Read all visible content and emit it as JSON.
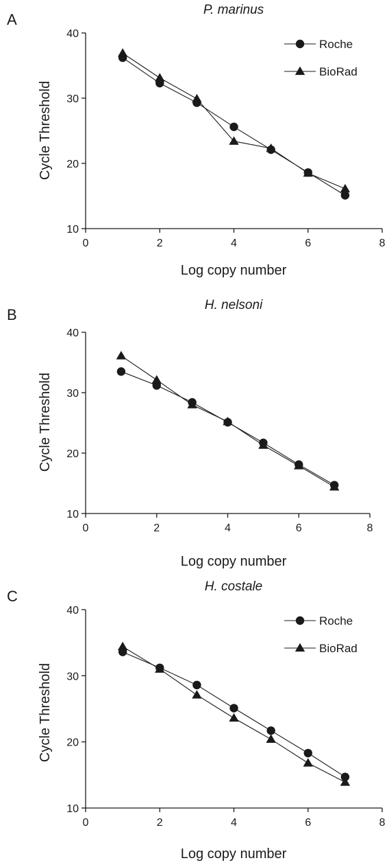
{
  "chart_data": [
    {
      "type": "line",
      "panel_label": "A",
      "title": "P. marinus",
      "xlabel": "Log copy number",
      "ylabel": "Cycle Threshold",
      "xlim": [
        0,
        8
      ],
      "ylim": [
        10,
        40
      ],
      "xticks": [
        0,
        2,
        4,
        6,
        8
      ],
      "yticks": [
        10,
        20,
        30,
        40
      ],
      "legend": true,
      "legend_position": "top-right",
      "x": [
        1,
        2,
        3,
        4,
        5,
        6,
        7
      ],
      "series": [
        {
          "name": "Roche",
          "marker": "circle",
          "values": [
            36.2,
            32.3,
            29.3,
            25.6,
            22.1,
            18.6,
            15.1
          ]
        },
        {
          "name": "BioRad",
          "marker": "triangle",
          "values": [
            36.9,
            33.1,
            29.9,
            23.4,
            22.3,
            18.5,
            16.1
          ]
        }
      ]
    },
    {
      "type": "line",
      "panel_label": "B",
      "title": "H. nelsoni",
      "xlabel": "Log copy number",
      "ylabel": "Cycle Threshold",
      "xlim": [
        0,
        8
      ],
      "ylim": [
        10,
        40
      ],
      "xticks": [
        0,
        2,
        4,
        6,
        8
      ],
      "yticks": [
        10,
        20,
        30,
        40
      ],
      "legend": false,
      "x": [
        1,
        2,
        3,
        4,
        5,
        6,
        7
      ],
      "series": [
        {
          "name": "Roche",
          "marker": "circle",
          "values": [
            33.5,
            31.2,
            28.4,
            25.1,
            21.7,
            18.1,
            14.7
          ]
        },
        {
          "name": "BioRad",
          "marker": "triangle",
          "values": [
            36.1,
            32.1,
            28.0,
            25.2,
            21.3,
            17.9,
            14.4
          ]
        }
      ]
    },
    {
      "type": "line",
      "panel_label": "C",
      "title": "H. costale",
      "xlabel": "Log copy number",
      "ylabel": "Cycle Threshold",
      "xlim": [
        0,
        8
      ],
      "ylim": [
        10,
        40
      ],
      "xticks": [
        0,
        2,
        4,
        6,
        8
      ],
      "yticks": [
        10,
        20,
        30,
        40
      ],
      "legend": true,
      "legend_position": "top-right",
      "x": [
        1,
        2,
        3,
        4,
        5,
        6,
        7
      ],
      "series": [
        {
          "name": "Roche",
          "marker": "circle",
          "values": [
            33.6,
            31.2,
            28.6,
            25.1,
            21.7,
            18.3,
            14.7
          ]
        },
        {
          "name": "BioRad",
          "marker": "triangle",
          "values": [
            34.4,
            31.0,
            27.1,
            23.6,
            20.4,
            16.8,
            13.9
          ]
        }
      ]
    }
  ]
}
